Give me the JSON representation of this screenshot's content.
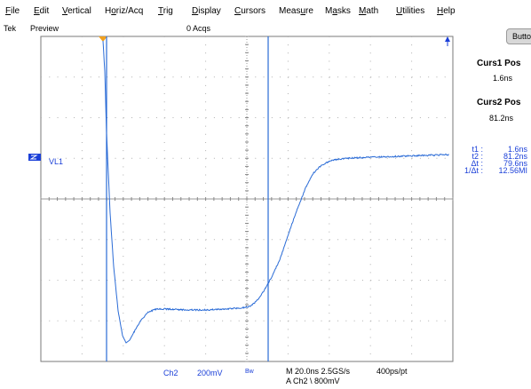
{
  "menu": [
    {
      "label": "File",
      "mnemonic": "F",
      "rest": "ile"
    },
    {
      "label": "Edit",
      "mnemonic": "E",
      "rest": "dit"
    },
    {
      "label": "Vertical",
      "mnemonic": "V",
      "rest": "ertical"
    },
    {
      "label": "Horiz/Acq",
      "pre": "H",
      "mnemonic": "o",
      "rest": "riz/Acq"
    },
    {
      "label": "Trig",
      "mnemonic": "T",
      "rest": "rig"
    },
    {
      "label": "Display",
      "mnemonic": "D",
      "rest": "isplay"
    },
    {
      "label": "Cursors",
      "mnemonic": "C",
      "rest": "ursors"
    },
    {
      "label": "Measure",
      "pre": "Meas",
      "mnemonic": "u",
      "rest": "re"
    },
    {
      "label": "Masks",
      "pre": "M",
      "mnemonic": "a",
      "rest": "sks"
    },
    {
      "label": "Math",
      "mnemonic": "M",
      "rest": "ath"
    },
    {
      "label": "Utilities",
      "mnemonic": "U",
      "rest": "tilities"
    },
    {
      "label": "Help",
      "mnemonic": "H",
      "rest": "elp"
    }
  ],
  "status": {
    "brand": "Tek",
    "mode": "Preview",
    "acqs": "0 Acqs"
  },
  "side_button": "Butto",
  "cursors": {
    "curs1_title": "Curs1 Pos",
    "curs1_value": "1.6ns",
    "curs2_title": "Curs2 Pos",
    "curs2_value": "81.2ns",
    "readouts": [
      {
        "key": "t1 :",
        "value": "1.6ns"
      },
      {
        "key": "t2 :",
        "value": "81.2ns"
      },
      {
        "key": "Δt :",
        "value": "79.6ns"
      },
      {
        "key": "1/Δt :",
        "value": "12.56MI"
      }
    ]
  },
  "channel_marker": "VL1",
  "bottom": {
    "channel": "Ch2",
    "scale": "200mV",
    "bw": "Bw",
    "timebase": "M 20.0ns 2.5GS/s",
    "record": "400ps/pt",
    "trigger": "A  Ch2  \\  800mV"
  },
  "colors": {
    "trace": "#2a6bd6",
    "cursor": "#2a6bd6",
    "trigger_marker": "#f0a020",
    "graticule": "#7a7a7a"
  }
}
